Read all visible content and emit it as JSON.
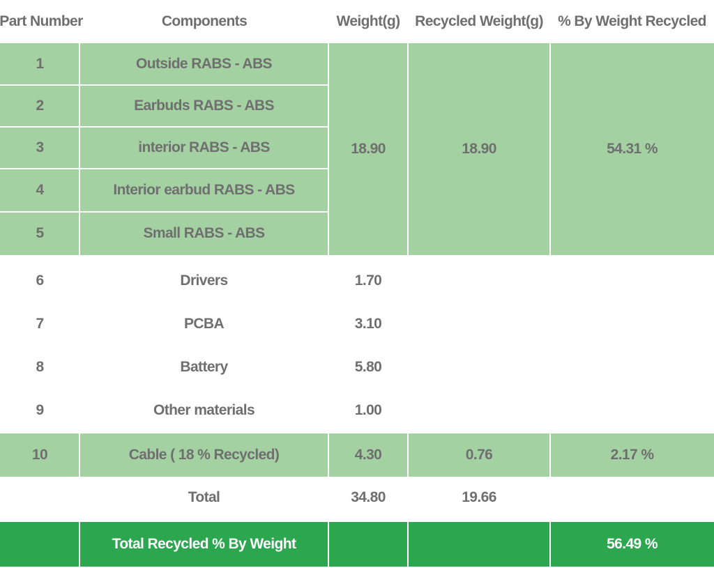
{
  "headers": {
    "part_number": "Part Number",
    "components": "Components",
    "weight": "Weight(g)",
    "recycled_weight": "Recycled Weight(g)",
    "pct_recycled": "% By Weight Recycled"
  },
  "rows": [
    {
      "part": "1",
      "component": "Outside RABS - ABS"
    },
    {
      "part": "2",
      "component": "Earbuds RABS - ABS"
    },
    {
      "part": "3",
      "component": "interior RABS - ABS"
    },
    {
      "part": "4",
      "component": "Interior earbud RABS - ABS"
    },
    {
      "part": "5",
      "component": "Small RABS - ABS"
    },
    {
      "part": "6",
      "component": "Drivers",
      "weight": "1.70"
    },
    {
      "part": "7",
      "component": "PCBA",
      "weight": "3.10"
    },
    {
      "part": "8",
      "component": "Battery",
      "weight": "5.80"
    },
    {
      "part": "9",
      "component": "Other materials",
      "weight": "1.00"
    },
    {
      "part": "10",
      "component": "Cable ( 18 % Recycled)",
      "weight": "4.30",
      "recycled": "0.76",
      "pct": "2.17 %"
    }
  ],
  "group_rabs": {
    "weight": "18.90",
    "recycled": "18.90",
    "pct": "54.31 %"
  },
  "total": {
    "label": "Total",
    "weight": "34.80",
    "recycled": "19.66"
  },
  "summary": {
    "label": "Total Recycled % By Weight",
    "pct": "56.49 %"
  },
  "colors": {
    "light_green": "#a3d1a2",
    "dark_green": "#2ca64f",
    "text_gray": "#6f6f6f"
  }
}
